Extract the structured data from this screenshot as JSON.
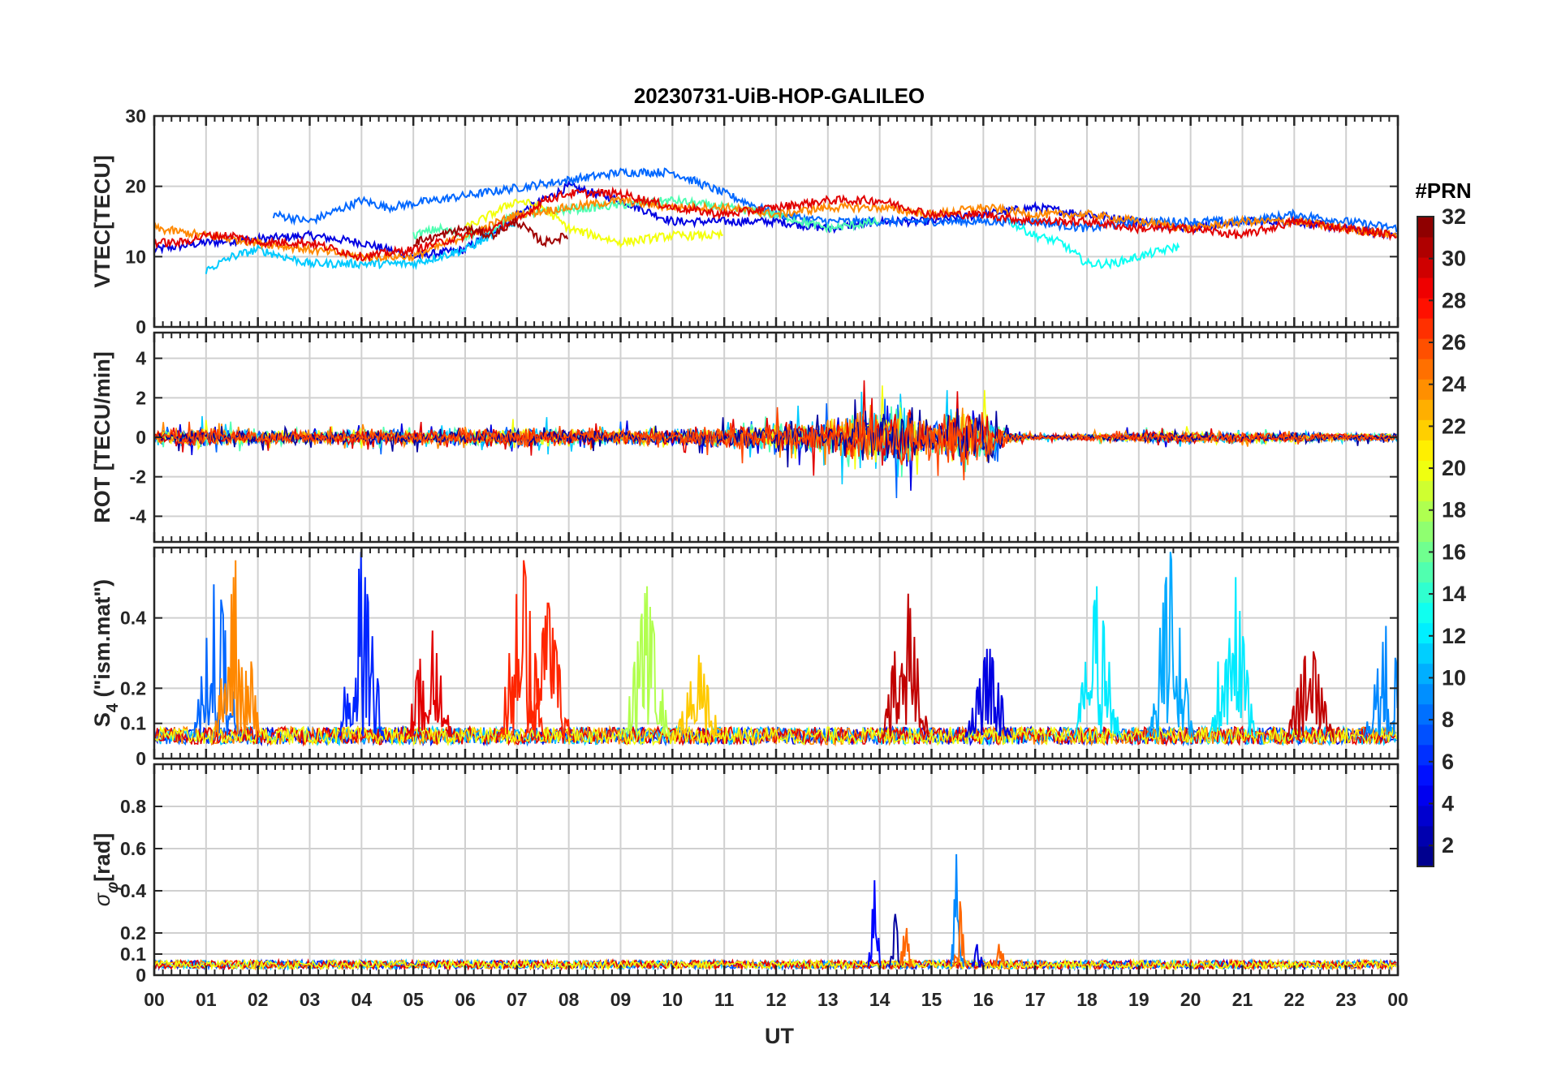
{
  "chart_data": {
    "type": "line",
    "title": "20230731-UiB-HOP-GALILEO",
    "xlabel": "UT",
    "x_tick_labels": [
      "00",
      "01",
      "02",
      "03",
      "04",
      "05",
      "06",
      "07",
      "08",
      "09",
      "10",
      "11",
      "12",
      "13",
      "14",
      "15",
      "16",
      "17",
      "18",
      "19",
      "20",
      "21",
      "22",
      "23",
      "00"
    ],
    "xlim": [
      0,
      24
    ],
    "grid": true,
    "colorbar": {
      "title": "#PRN",
      "range": [
        1,
        32
      ],
      "tick_labels": [
        "2",
        "4",
        "6",
        "8",
        "10",
        "12",
        "14",
        "16",
        "18",
        "20",
        "22",
        "24",
        "26",
        "28",
        "30",
        "32"
      ],
      "colormap": "jet",
      "placement": "right"
    },
    "panels": [
      {
        "ylabel": "VTEC[TECU]",
        "ylim": [
          0,
          30
        ],
        "y_ticks": [
          "0",
          "10",
          "20",
          "30"
        ],
        "series": [
          {
            "prn": 4,
            "x": [
              0,
              1,
              2,
              3,
              4,
              5,
              6,
              7,
              8,
              9,
              10,
              11,
              12,
              13,
              14,
              15,
              16,
              17,
              18,
              19,
              20,
              21,
              22,
              23,
              24
            ],
            "y": [
              11,
              12,
              12.5,
              13,
              12,
              10,
              11,
              16,
              20,
              18,
              15,
              15,
              15,
              14,
              15,
              15,
              16,
              17,
              16,
              15,
              14,
              15,
              15,
              14,
              13
            ]
          },
          {
            "prn": 8,
            "x": [
              2.3,
              3,
              4,
              4.5,
              9,
              9.5,
              10,
              11,
              12,
              13,
              14,
              15,
              16,
              17,
              18,
              19,
              20,
              21,
              22,
              23,
              24
            ],
            "y": [
              16,
              15,
              18,
              17,
              22,
              22,
              22,
              19,
              16,
              15,
              15,
              15,
              15,
              15,
              14,
              15,
              15,
              15,
              16,
              15,
              14
            ]
          },
          {
            "prn": 11,
            "x": [
              1,
              1.5,
              2,
              3,
              4,
              5,
              6,
              7
            ],
            "y": [
              8,
              10,
              11,
              9,
              9,
              9,
              11,
              15
            ]
          },
          {
            "prn": 13,
            "x": [
              16.5,
              17,
              17.5,
              18,
              18.5,
              19,
              19.8
            ],
            "y": [
              15,
              13,
              12,
              9,
              9,
              10,
              11.5
            ]
          },
          {
            "prn": 15,
            "x": [
              5,
              5.5,
              6,
              6.5,
              7,
              10,
              11,
              12,
              13,
              14
            ],
            "y": [
              13,
              14,
              13,
              14,
              16,
              18,
              17,
              16,
              14,
              15
            ]
          },
          {
            "prn": 20,
            "x": [
              6,
              6.5,
              7,
              7.5,
              8,
              9,
              10,
              11
            ],
            "y": [
              14,
              16,
              18,
              17,
              14,
              12,
              13,
              13
            ]
          },
          {
            "prn": 24,
            "x": [
              0,
              1,
              2,
              3,
              4,
              5,
              6,
              7,
              8,
              9,
              10,
              11,
              12,
              13,
              14,
              15,
              16,
              17,
              18,
              19,
              20,
              21,
              22,
              23,
              24
            ],
            "y": [
              14,
              13,
              12,
              11,
              10,
              10,
              13,
              16,
              17,
              18,
              17,
              17,
              16,
              17,
              17,
              16,
              17,
              16,
              16,
              15,
              14,
              15,
              15,
              14,
              13
            ]
          },
          {
            "prn": 29,
            "x": [
              0,
              0.5,
              1,
              1.5,
              2,
              3,
              4,
              5,
              6,
              7,
              7.5,
              8,
              9,
              10,
              11,
              12,
              13,
              14,
              15,
              16,
              17,
              18,
              19,
              20,
              21,
              22,
              23,
              24
            ],
            "y": [
              12,
              12,
              13,
              13,
              12,
              12,
              10,
              11,
              13,
              15,
              18,
              19,
              19,
              17,
              16,
              17,
              18,
              18,
              16,
              16,
              15,
              15,
              14,
              14,
              13,
              15,
              14,
              13
            ]
          },
          {
            "prn": 31,
            "x": [
              5,
              5.5,
              6,
              6.5,
              7,
              7.5,
              8
            ],
            "y": [
              12,
              13,
              14,
              13,
              15,
              12,
              13
            ]
          }
        ]
      },
      {
        "ylabel": "ROT [TECU/min]",
        "ylim": [
          -5.3,
          5.3
        ],
        "y_ticks": [
          "-4",
          "-2",
          "0",
          "2",
          "4"
        ],
        "series_note_free": true,
        "envelope": {
          "x": [
            0,
            1,
            2,
            3,
            4,
            5,
            6,
            7,
            8,
            9,
            10,
            11,
            12,
            13,
            13.5,
            14,
            14.5,
            15,
            15.5,
            16,
            16.5,
            17,
            18,
            19,
            20,
            21,
            22,
            23,
            24
          ],
          "amplitude": [
            0.8,
            1.2,
            0.8,
            0.8,
            1,
            0.9,
            1,
            1.4,
            1,
            1,
            1,
            1.3,
            1.8,
            2.2,
            3,
            3.8,
            4.2,
            2,
            3.5,
            3.2,
            0.6,
            0.3,
            0.4,
            0.6,
            0.7,
            0.6,
            0.6,
            0.5,
            0.5
          ]
        }
      },
      {
        "ylabel": "S4 (\"ism.mat\")",
        "ylabel_main": "S",
        "ylabel_sub": "4",
        "ylabel_rest": " (\"ism.mat\")",
        "ylim": [
          0,
          0.6
        ],
        "y_ticks": [
          "0",
          "0.1",
          "0.2",
          "0.4"
        ],
        "peaks": [
          {
            "prn": 8,
            "x": 1.2,
            "y": 0.55
          },
          {
            "prn": 24,
            "x": 1.6,
            "y": 0.6
          },
          {
            "prn": 6,
            "x": 4.0,
            "y": 0.6
          },
          {
            "prn": 29,
            "x": 5.3,
            "y": 0.42
          },
          {
            "prn": 27,
            "x": 7.1,
            "y": 0.6
          },
          {
            "prn": 27,
            "x": 7.6,
            "y": 0.45
          },
          {
            "prn": 18,
            "x": 9.5,
            "y": 0.5
          },
          {
            "prn": 22,
            "x": 10.5,
            "y": 0.3
          },
          {
            "prn": 30,
            "x": 14.5,
            "y": 0.52
          },
          {
            "prn": 4,
            "x": 16.1,
            "y": 0.33
          },
          {
            "prn": 12,
            "x": 18.2,
            "y": 0.5
          },
          {
            "prn": 10,
            "x": 19.6,
            "y": 0.6
          },
          {
            "prn": 12,
            "x": 20.8,
            "y": 0.6
          },
          {
            "prn": 30,
            "x": 22.3,
            "y": 0.35
          },
          {
            "prn": 9,
            "x": 23.8,
            "y": 0.4
          }
        ]
      },
      {
        "ylabel": "σφ[rad]",
        "ylabel_sigma": "σ",
        "ylabel_phi": "φ",
        "ylabel_rest": "[rad]",
        "ylim": [
          0,
          1.0
        ],
        "y_ticks": [
          "0",
          "0.1",
          "0.2",
          "0.4",
          "0.6",
          "0.8"
        ],
        "peaks": [
          {
            "prn": 5,
            "x": 13.9,
            "y": 0.45
          },
          {
            "prn": 2,
            "x": 14.3,
            "y": 0.29
          },
          {
            "prn": 25,
            "x": 14.5,
            "y": 0.26
          },
          {
            "prn": 9,
            "x": 15.5,
            "y": 0.68
          },
          {
            "prn": 25,
            "x": 15.55,
            "y": 0.35
          },
          {
            "prn": 4,
            "x": 15.9,
            "y": 0.3
          },
          {
            "prn": 25,
            "x": 16.3,
            "y": 0.23
          }
        ]
      }
    ]
  }
}
